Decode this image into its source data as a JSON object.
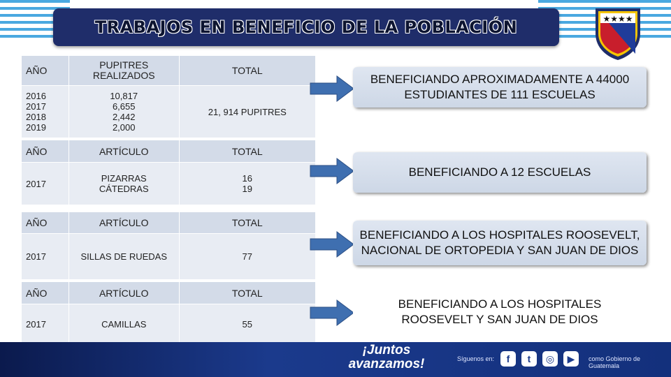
{
  "title": "TRABAJOS EN BENEFICIO DE LA POBLACIÓN",
  "colors": {
    "title_bg": "#1f2d6a",
    "stripe": "#4aa8e0",
    "arrow": "#3f6fb0",
    "header_cell": "#d3dbe8",
    "body_cell": "#e8ecf3"
  },
  "table1": {
    "headers": [
      "AÑO",
      "PUPITRES REALIZADOS",
      "TOTAL"
    ],
    "years": [
      "2016",
      "2017",
      "2018",
      "2019"
    ],
    "values": [
      "10,817",
      "6,655",
      "2,442",
      "2,000"
    ],
    "total": "21, 914 PUPITRES"
  },
  "table2": {
    "headers": [
      "AÑO",
      "ARTÍCULO",
      "TOTAL"
    ],
    "year": "2017",
    "articles": [
      "PIZARRAS",
      "CÁTEDRAS"
    ],
    "totals": [
      "16",
      "19"
    ]
  },
  "table3": {
    "headers": [
      "AÑO",
      "ARTÍCULO",
      "TOTAL"
    ],
    "year": "2017",
    "article": "SILLAS DE RUEDAS",
    "total": "77"
  },
  "table4": {
    "headers": [
      "AÑO",
      "ARTÍCULO",
      "TOTAL"
    ],
    "year": "2017",
    "article": "CAMILLAS",
    "total": "55"
  },
  "benefits": [
    "BENEFICIANDO APROXIMADAMENTE A 44000 ESTUDIANTES DE 111 ESCUELAS",
    "BENEFICIANDO A 12 ESCUELAS",
    "BENEFICIANDO A LOS HOSPITALES ROOSEVELT, NACIONAL DE ORTOPEDIA Y SAN JUAN DE DIOS",
    "BENEFICIANDO A LOS HOSPITALES ROOSEVELT Y SAN JUAN DE DIOS"
  ],
  "footer": {
    "slogan": "¡Juntos avanzamos!",
    "follow": "Síguenos en:",
    "social_icons": [
      "facebook-icon",
      "twitter-icon",
      "instagram-icon",
      "youtube-icon"
    ],
    "social_glyphs": [
      "f",
      "t",
      "◎",
      "▶"
    ],
    "government": "como Gobierno de Guatemala"
  }
}
